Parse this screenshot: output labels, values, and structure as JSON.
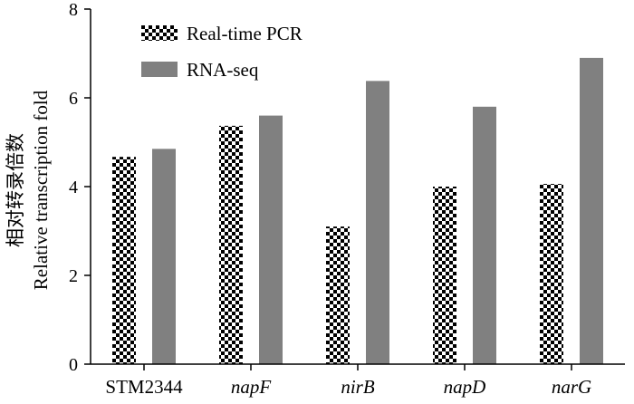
{
  "chart_data": {
    "type": "bar",
    "categories": [
      "STM2344",
      "napF",
      "nirB",
      "napD",
      "narG"
    ],
    "categories_italic": [
      false,
      true,
      true,
      true,
      true
    ],
    "series": [
      {
        "name": "Real-time PCR",
        "values": [
          4.67,
          5.37,
          3.1,
          4.0,
          4.06
        ],
        "pattern": "checkerboard",
        "color": "#000000"
      },
      {
        "name": "RNA-seq",
        "values": [
          4.85,
          5.6,
          6.38,
          5.8,
          6.9
        ],
        "color": "#808080"
      }
    ],
    "ylabel_cn": "相对转录倍数",
    "ylabel_en": "Relative transcription fold",
    "xlabel": "",
    "ylim": [
      0,
      8
    ],
    "yticks": [
      0,
      2,
      4,
      6,
      8
    ],
    "grid": false,
    "legend_position": "top-left"
  }
}
